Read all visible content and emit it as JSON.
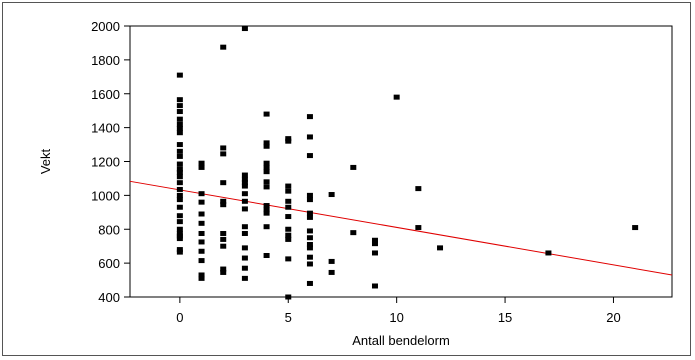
{
  "chart_data": {
    "type": "scatter",
    "title": "",
    "xlabel": "Antall bendelorm",
    "ylabel": "Vekt",
    "xlim": [
      -2.3,
      22.7
    ],
    "ylim": [
      400,
      2000
    ],
    "xticks": [
      0,
      5,
      10,
      15,
      20
    ],
    "yticks": [
      400,
      600,
      800,
      1000,
      1200,
      1400,
      1600,
      1800,
      2000
    ],
    "marker_color": "#000000",
    "trend_color": "#e00000",
    "points": [
      [
        0,
        1710
      ],
      [
        0,
        1565
      ],
      [
        0,
        1530
      ],
      [
        0,
        1495
      ],
      [
        0,
        1450
      ],
      [
        0,
        1420
      ],
      [
        0,
        1395
      ],
      [
        0,
        1370
      ],
      [
        0,
        1300
      ],
      [
        0,
        1260
      ],
      [
        0,
        1230
      ],
      [
        0,
        1185
      ],
      [
        0,
        1155
      ],
      [
        0,
        1135
      ],
      [
        0,
        1110
      ],
      [
        0,
        1075
      ],
      [
        0,
        1035
      ],
      [
        0,
        1000
      ],
      [
        0,
        975
      ],
      [
        0,
        930
      ],
      [
        0,
        880
      ],
      [
        0,
        845
      ],
      [
        0,
        800
      ],
      [
        0,
        775
      ],
      [
        0,
        760
      ],
      [
        0,
        745
      ],
      [
        0,
        680
      ],
      [
        0,
        665
      ],
      [
        1,
        1190
      ],
      [
        1,
        1165
      ],
      [
        1,
        1010
      ],
      [
        1,
        960
      ],
      [
        1,
        890
      ],
      [
        1,
        835
      ],
      [
        1,
        775
      ],
      [
        1,
        725
      ],
      [
        1,
        670
      ],
      [
        1,
        615
      ],
      [
        1,
        530
      ],
      [
        1,
        510
      ],
      [
        2,
        1875
      ],
      [
        2,
        1280
      ],
      [
        2,
        1245
      ],
      [
        2,
        1075
      ],
      [
        2,
        965
      ],
      [
        2,
        945
      ],
      [
        2,
        775
      ],
      [
        2,
        740
      ],
      [
        2,
        700
      ],
      [
        2,
        565
      ],
      [
        2,
        545
      ],
      [
        3,
        1985
      ],
      [
        3,
        1120
      ],
      [
        3,
        1095
      ],
      [
        3,
        1075
      ],
      [
        3,
        1055
      ],
      [
        3,
        1010
      ],
      [
        3,
        965
      ],
      [
        3,
        920
      ],
      [
        3,
        815
      ],
      [
        3,
        775
      ],
      [
        3,
        690
      ],
      [
        3,
        630
      ],
      [
        3,
        570
      ],
      [
        3,
        510
      ],
      [
        4,
        1480
      ],
      [
        4,
        1310
      ],
      [
        4,
        1290
      ],
      [
        4,
        1190
      ],
      [
        4,
        1165
      ],
      [
        4,
        1140
      ],
      [
        4,
        1080
      ],
      [
        4,
        1050
      ],
      [
        4,
        940
      ],
      [
        4,
        915
      ],
      [
        4,
        895
      ],
      [
        4,
        815
      ],
      [
        4,
        645
      ],
      [
        5,
        1335
      ],
      [
        5,
        1320
      ],
      [
        5,
        1055
      ],
      [
        5,
        1025
      ],
      [
        5,
        965
      ],
      [
        5,
        930
      ],
      [
        5,
        875
      ],
      [
        5,
        800
      ],
      [
        5,
        765
      ],
      [
        5,
        740
      ],
      [
        5,
        625
      ],
      [
        5,
        400
      ],
      [
        6,
        1465
      ],
      [
        6,
        1345
      ],
      [
        6,
        1235
      ],
      [
        6,
        1000
      ],
      [
        6,
        975
      ],
      [
        6,
        895
      ],
      [
        6,
        870
      ],
      [
        6,
        790
      ],
      [
        6,
        750
      ],
      [
        6,
        710
      ],
      [
        6,
        690
      ],
      [
        6,
        635
      ],
      [
        6,
        595
      ],
      [
        6,
        480
      ],
      [
        7,
        1005
      ],
      [
        7,
        610
      ],
      [
        7,
        545
      ],
      [
        8,
        1165
      ],
      [
        8,
        780
      ],
      [
        9,
        735
      ],
      [
        9,
        715
      ],
      [
        9,
        660
      ],
      [
        9,
        465
      ],
      [
        10,
        1580
      ],
      [
        11,
        1040
      ],
      [
        11,
        810
      ],
      [
        12,
        690
      ],
      [
        17,
        660
      ],
      [
        21,
        810
      ]
    ],
    "trendline": {
      "x": [
        -2.3,
        22.7
      ],
      "y": [
        1083,
        530
      ]
    }
  }
}
